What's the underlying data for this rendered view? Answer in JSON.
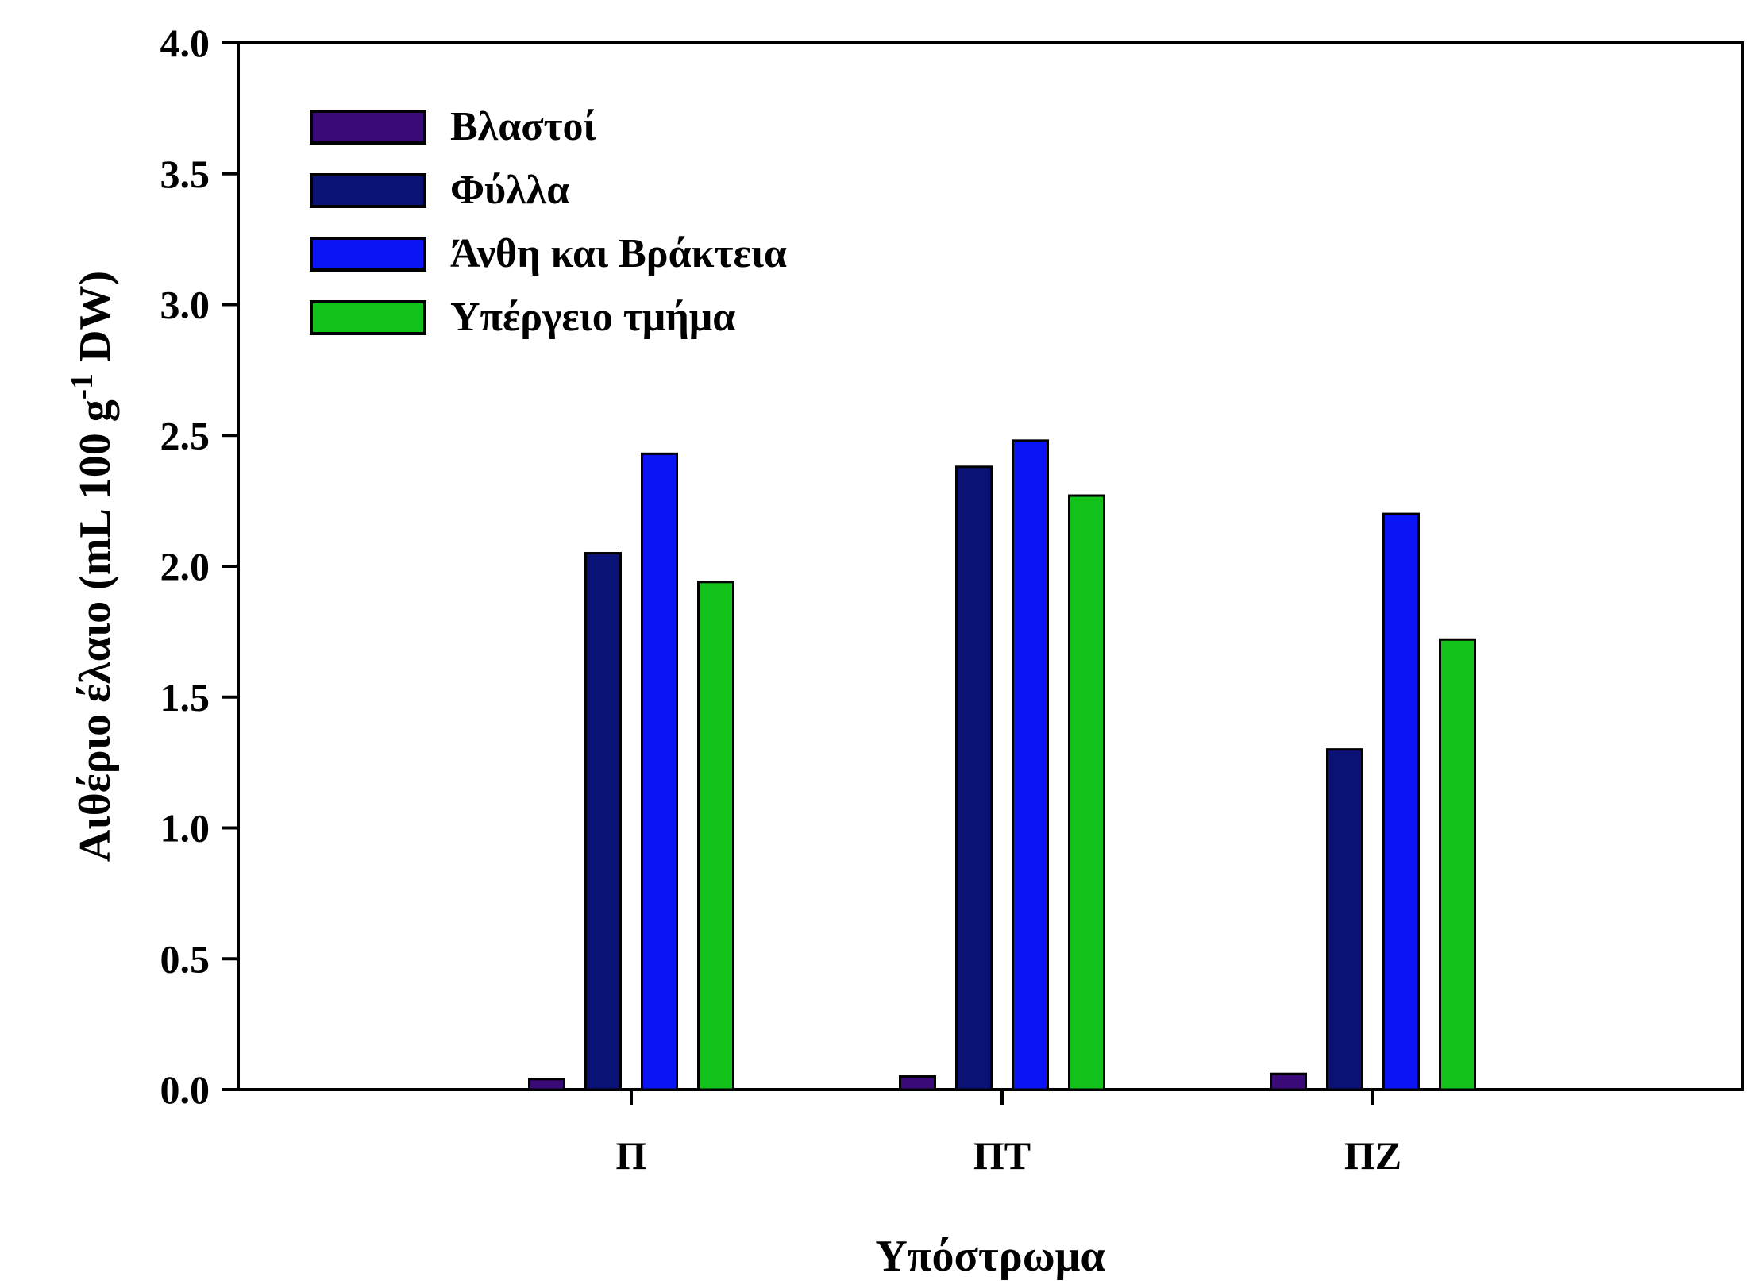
{
  "chart_data": {
    "type": "bar",
    "categories": [
      "Π",
      "ΠΤ",
      "ΠΖ"
    ],
    "series": [
      {
        "name": "Βλαστοί",
        "color": "#3a0a78",
        "values": [
          0.04,
          0.05,
          0.06
        ]
      },
      {
        "name": "Φύλλα",
        "color": "#0b1275",
        "values": [
          2.05,
          2.38,
          1.3
        ]
      },
      {
        "name": "Άνθη και Βράκτεια",
        "color": "#0a14f5",
        "values": [
          2.43,
          2.48,
          2.2
        ]
      },
      {
        "name": "Υπέργειο τμήμα",
        "color": "#12c21a",
        "values": [
          1.94,
          2.27,
          1.72
        ]
      }
    ],
    "xlabel": "Υπόστρωμα",
    "ylabel_main": "Αιθέριο έλαιο (mL 100 g",
    "ylabel_sup": "-1",
    "ylabel_end": " DW)",
    "ylim": [
      0,
      4.0
    ],
    "yticks": [
      "0.0",
      "0.5",
      "1.0",
      "1.5",
      "2.0",
      "2.5",
      "3.0",
      "3.5",
      "4.0"
    ],
    "grid": false,
    "legend_position": "top-left"
  }
}
